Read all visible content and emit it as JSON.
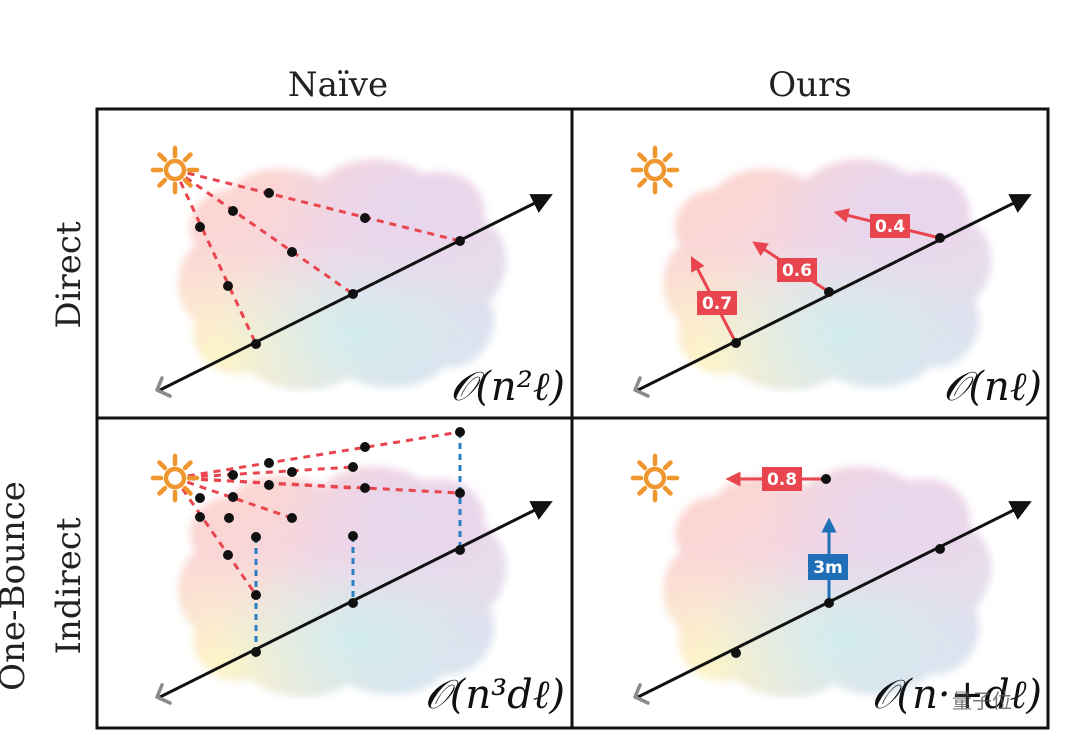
{
  "columns": {
    "naive": "Naïve",
    "ours": "Ours"
  },
  "rows": {
    "direct": "Direct",
    "indirect_line1": "One-Bounce",
    "indirect_line2": "Indirect"
  },
  "complexities": {
    "naive_direct": "𝒪(n²ℓ)",
    "ours_direct": "𝒪(nℓ)",
    "naive_indirect": "𝒪(n³dℓ)",
    "ours_indirect": "𝒪(n·+dℓ)"
  },
  "ours_direct_values": [
    "0.7",
    "0.6",
    "0.4"
  ],
  "ours_indirect_value": "0.8",
  "ours_indirect_distance": "3m",
  "watermark": "量子位",
  "colors": {
    "border": "#111111",
    "sun": "#f0962f",
    "ray_red": "#e8454f",
    "drop_blue": "#2a7fc1",
    "tag_blue": "#1f6fb8",
    "camera_gray": "#8a8a8a"
  },
  "icons": [
    "sun-icon",
    "camera-arrow-icon",
    "ray-arrow-icon"
  ]
}
